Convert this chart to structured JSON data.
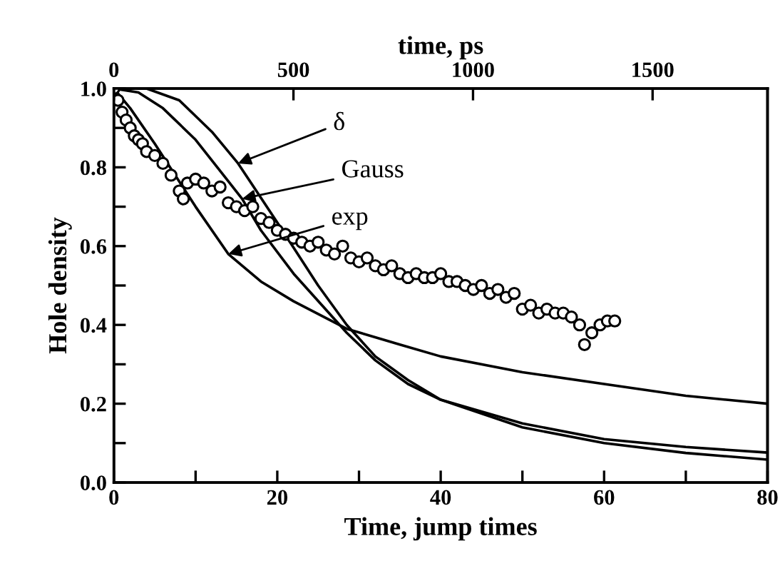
{
  "chart_data": {
    "type": "line",
    "xlabel": "Time, jump times",
    "ylabel": "Hole density",
    "x2label": "time, ps",
    "xlim": [
      0,
      80
    ],
    "xticks": [
      0,
      {
        "value": 10,
        "label": null
      },
      20,
      {
        "value": 30,
        "label": null
      },
      40,
      {
        "value": 50,
        "label": null
      },
      60,
      {
        "value": 70,
        "label": null
      },
      80
    ],
    "ylim": [
      0,
      1
    ],
    "yticks": [
      {
        "value": 0,
        "label": "0.0"
      },
      {
        "value": 0.1,
        "label": null
      },
      0.2,
      {
        "value": 0.3,
        "label": null
      },
      0.4,
      {
        "value": 0.5,
        "label": null
      },
      0.6,
      {
        "value": 0.7,
        "label": null
      },
      0.8,
      {
        "value": 0.9,
        "label": null
      },
      {
        "value": 1,
        "label": "1.0"
      }
    ],
    "x2lim": [
      0,
      1820
    ],
    "annotations": [
      {
        "text": "δ",
        "x": 15.2,
        "y": 0.81
      },
      {
        "text": "Gauss",
        "x": 15.7,
        "y": 0.72
      },
      {
        "text": "exp",
        "x": 14,
        "y": 0.58
      }
    ],
    "x2ticks": [
      0,
      500,
      1000,
      1500
    ],
    "grid": false,
    "legend": false,
    "series": [
      {
        "type": "scatter",
        "marker": "circle",
        "color": "#000000",
        "x": [
          0,
          0.5,
          1,
          1.5,
          2,
          2.5,
          3,
          3.5,
          4,
          5,
          6,
          7,
          8,
          8.5,
          9,
          10,
          11,
          12,
          13,
          14,
          15,
          16,
          17,
          18,
          19,
          20,
          21,
          22,
          23,
          24,
          25,
          26,
          27,
          28,
          29,
          30,
          31,
          32,
          33,
          34,
          35,
          36,
          37,
          38,
          39,
          40,
          41,
          42,
          43,
          44,
          45,
          46,
          47,
          48,
          49,
          50,
          51,
          52,
          53,
          54,
          55,
          56,
          57,
          57.6,
          58.5,
          59.5,
          60.4,
          61.3
        ],
        "values": [
          1.0,
          0.97,
          0.94,
          0.92,
          0.9,
          0.88,
          0.87,
          0.86,
          0.84,
          0.83,
          0.81,
          0.78,
          0.74,
          0.72,
          0.76,
          0.77,
          0.76,
          0.74,
          0.75,
          0.71,
          0.7,
          0.69,
          0.7,
          0.67,
          0.66,
          0.64,
          0.63,
          0.62,
          0.61,
          0.6,
          0.61,
          0.59,
          0.58,
          0.6,
          0.57,
          0.56,
          0.57,
          0.55,
          0.54,
          0.55,
          0.53,
          0.52,
          0.53,
          0.52,
          0.52,
          0.53,
          0.51,
          0.51,
          0.5,
          0.49,
          0.5,
          0.48,
          0.49,
          0.47,
          0.48,
          0.44,
          0.45,
          0.43,
          0.44,
          0.43,
          0.43,
          0.42,
          0.4,
          0.35,
          0.38,
          0.4,
          0.41,
          0.41
        ]
      },
      {
        "color": "#000000",
        "x": [
          0,
          4,
          8,
          12,
          15.2,
          20,
          25,
          28.5,
          32,
          36,
          40,
          50,
          60,
          70,
          80
        ],
        "values": [
          1,
          1,
          0.97,
          0.89,
          0.81,
          0.66,
          0.5,
          0.4,
          0.32,
          0.26,
          0.21,
          0.15,
          0.11,
          0.09,
          0.076
        ]
      },
      {
        "color": "#000000",
        "x": [
          0,
          3,
          6,
          10,
          15.7,
          18,
          22,
          28.5,
          32,
          36,
          40,
          50,
          60,
          70,
          80
        ],
        "values": [
          1,
          0.99,
          0.95,
          0.87,
          0.72,
          0.64,
          0.53,
          0.38,
          0.31,
          0.25,
          0.21,
          0.14,
          0.1,
          0.075,
          0.058
        ]
      },
      {
        "color": "#000000",
        "x": [
          0,
          2,
          5,
          10,
          14,
          18,
          22,
          28.5,
          35,
          40,
          50,
          60,
          70,
          80
        ],
        "values": [
          1,
          0.95,
          0.86,
          0.7,
          0.58,
          0.51,
          0.46,
          0.39,
          0.35,
          0.32,
          0.28,
          0.25,
          0.22,
          0.2
        ]
      }
    ]
  }
}
